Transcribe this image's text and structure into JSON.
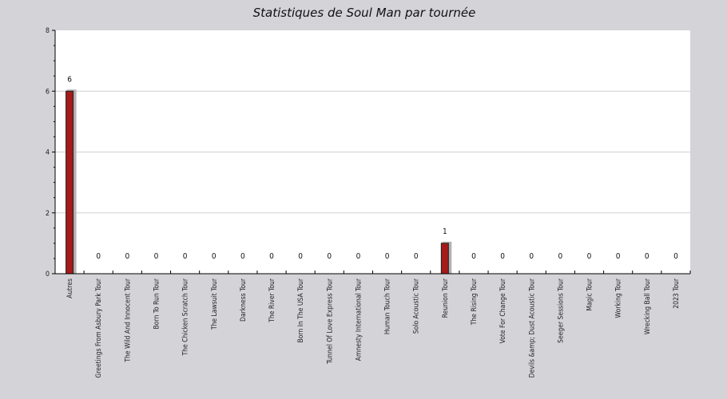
{
  "chart_data": {
    "type": "bar",
    "title": "Statistiques de Soul Man par tournée",
    "xlabel": "",
    "ylabel": "",
    "ylim": [
      0,
      8
    ],
    "yticks": [
      0,
      2,
      4,
      6,
      8
    ],
    "grid": true,
    "categories": [
      "Autres",
      "Greetings From Asbury Park Tour",
      "The Wild And Innocent Tour",
      "Born To Run Tour",
      "The Chicken Scratch Tour",
      "The Lawsuit Tour",
      "Darkness Tour",
      "The River Tour",
      "Born In The USA Tour",
      "Tunnel Of Love Express Tour",
      "Amnesty International Tour",
      "Human Touch Tour",
      "Solo Acoustic Tour",
      "Reunion Tour",
      "The Rising Tour",
      "Vote For Change Tour",
      "Devils &amp; Dust Acoustic Tour",
      "Seeger Sessions Tour",
      "Magic Tour",
      "Working Tour",
      "Wrecking Ball Tour",
      "2023 Tour"
    ],
    "values": [
      6,
      0,
      0,
      0,
      0,
      0,
      0,
      0,
      0,
      0,
      0,
      0,
      0,
      1,
      0,
      0,
      0,
      0,
      0,
      0,
      0,
      0
    ],
    "colors": {
      "bar": "#a51a1a",
      "bar_outline": "#222222",
      "bar_shadow": "#b3b3b3",
      "plot_background": "#ffffff",
      "page_background": "#d4d3d8",
      "grid": "#cfcfcf"
    }
  }
}
